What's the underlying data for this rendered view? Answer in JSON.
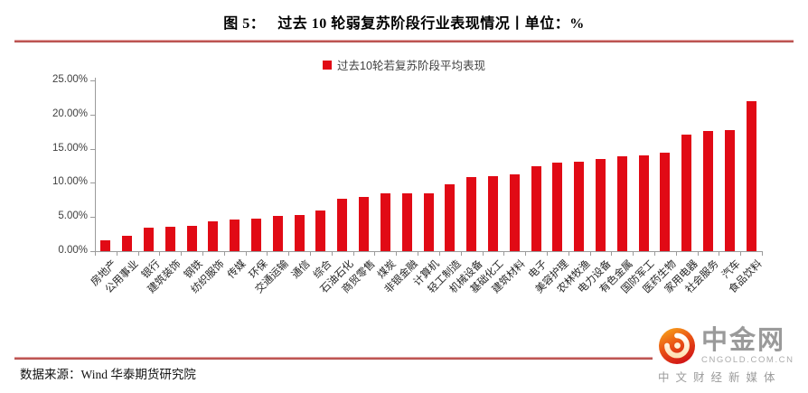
{
  "header": {
    "figure_label": "图 5：",
    "title": "过去 10 轮弱复苏阶段行业表现情况丨单位：%"
  },
  "legend": {
    "label": "过去10轮若复苏阶段平均表现",
    "marker_color": "#e10a15"
  },
  "chart_data": {
    "type": "bar",
    "title": "过去 10 轮弱复苏阶段行业表现情况",
    "unit": "%",
    "series_name": "过去10轮若复苏阶段平均表现",
    "categories": [
      "房地产",
      "公用事业",
      "银行",
      "建筑装饰",
      "钢铁",
      "纺织服饰",
      "传媒",
      "环保",
      "交通运输",
      "通信",
      "综合",
      "石油石化",
      "商贸零售",
      "煤炭",
      "非银金融",
      "计算机",
      "轻工制造",
      "机械设备",
      "基础化工",
      "建筑材料",
      "电子",
      "美容护理",
      "农林牧渔",
      "电力设备",
      "有色金属",
      "国防军工",
      "医药生物",
      "家用电器",
      "社会服务",
      "汽车",
      "食品饮料"
    ],
    "values": [
      1.6,
      2.2,
      3.4,
      3.6,
      3.7,
      4.3,
      4.6,
      4.7,
      5.1,
      5.3,
      6.0,
      7.7,
      7.9,
      8.4,
      8.5,
      8.5,
      9.8,
      10.9,
      11.0,
      11.2,
      12.5,
      13.0,
      13.1,
      13.5,
      13.9,
      14.0,
      14.4,
      17.1,
      17.6,
      17.7,
      22.0
    ],
    "xlabel": "",
    "ylabel": "",
    "ylim": [
      0,
      25
    ],
    "ytick_labels": [
      "0.00%",
      "5.00%",
      "10.00%",
      "15.00%",
      "20.00%",
      "25.00%"
    ],
    "ytick_values": [
      0,
      5,
      10,
      15,
      20,
      25
    ],
    "grid": false,
    "legend_position": "top-center",
    "bar_color": "#e10a15",
    "axis_color": "#9b9b9b"
  },
  "footer": {
    "source": "数据来源：Wind 华泰期货研究院"
  },
  "watermark": {
    "brand": "中金网",
    "domain": "CNGOLD.COM.CN",
    "tagline": "中文财经新媒体"
  }
}
